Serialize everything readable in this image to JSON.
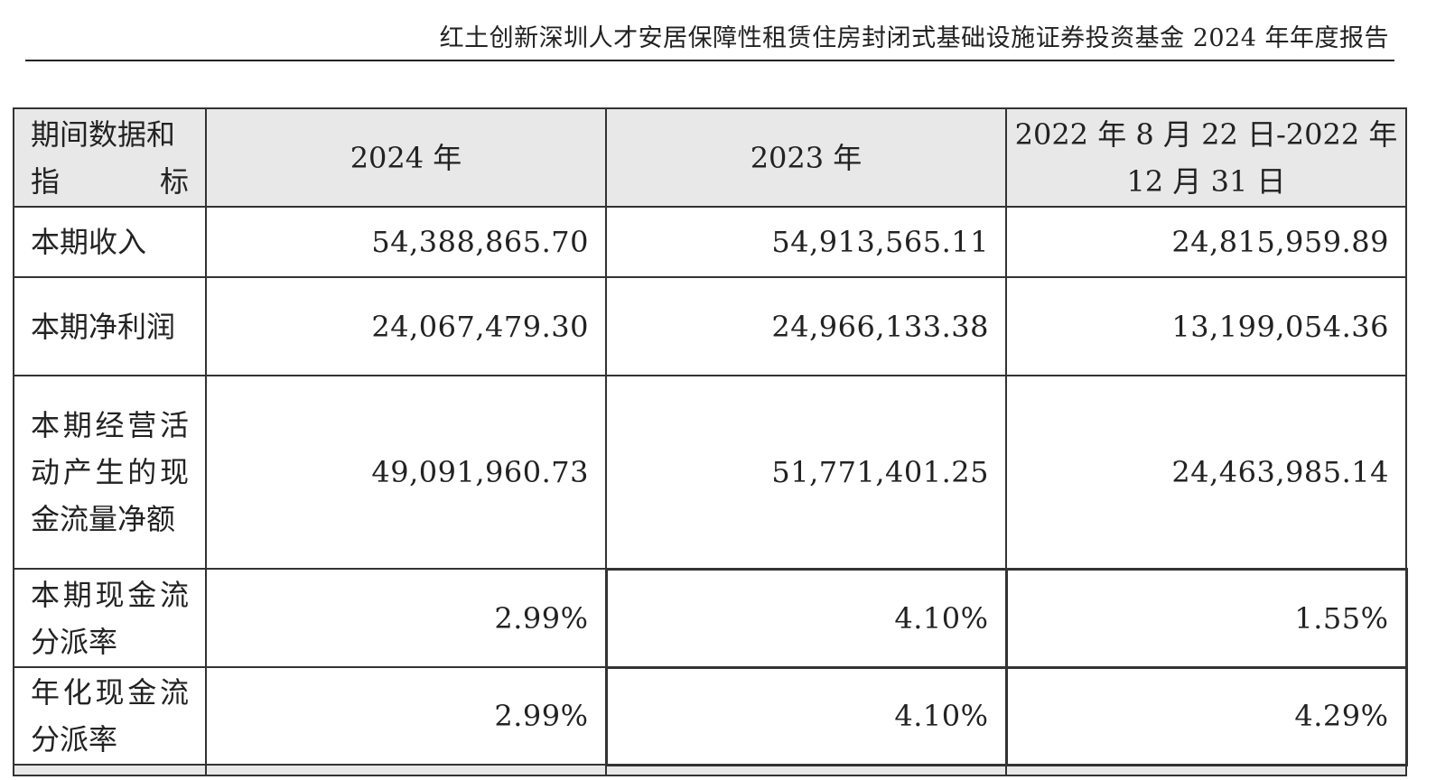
{
  "header": {
    "title": "红土创新深圳人才安居保障性租赁住房封闭式基础设施证券投资基金 2024 年年度报告"
  },
  "table": {
    "columns": [
      "期间数据和指标",
      "2024 年",
      "2023 年",
      "2022 年 8 月 22 日-2022 年 12 月 31 日"
    ],
    "rows": [
      {
        "label": "本期收入",
        "values": [
          "54,388,865.70",
          "54,913,565.11",
          "24,815,959.89"
        ]
      },
      {
        "label": "本期净利润",
        "values": [
          "24,067,479.30",
          "24,966,133.38",
          "13,199,054.36"
        ]
      },
      {
        "label": "本期经营活动产生的现金流量净额",
        "values": [
          "49,091,960.73",
          "51,771,401.25",
          "24,463,985.14"
        ]
      },
      {
        "label": "本期现金流分派率",
        "values": [
          "2.99%",
          "4.10%",
          "1.55%"
        ]
      },
      {
        "label": "年化现金流分派率",
        "values": [
          "2.99%",
          "4.10%",
          "4.29%"
        ]
      }
    ]
  }
}
